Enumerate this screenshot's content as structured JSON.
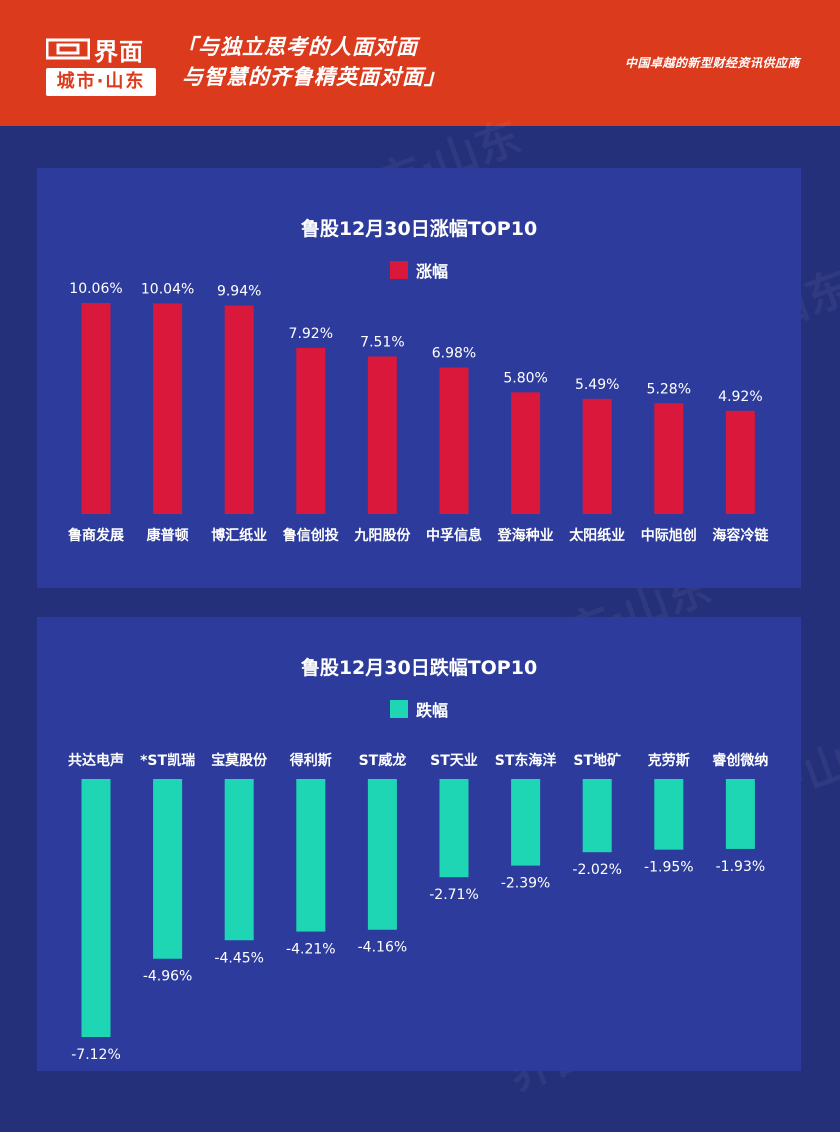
{
  "header": {
    "logo_text": "界面",
    "logo_sub": "城市·山东",
    "slogan_line1": "「与独立思考的人面对面",
    "slogan_line2": "与智慧的齐鲁精英面对面」",
    "tagline": "中国卓越的新型财经资讯供应商",
    "brand_color": "#dc3a1c"
  },
  "watermark_text": "界面 城市·山东",
  "chart_data": [
    {
      "type": "bar",
      "title": "鲁股12月30日涨幅TOP10",
      "categories": [
        "鲁商发展",
        "康普顿",
        "博汇纸业",
        "鲁信创投",
        "九阳股份",
        "中孚信息",
        "登海种业",
        "太阳纸业",
        "中际旭创",
        "海容冷链"
      ],
      "series": [
        {
          "name": "涨幅",
          "values": [
            10.06,
            10.04,
            9.94,
            7.92,
            7.51,
            6.98,
            5.8,
            5.49,
            5.28,
            4.92
          ],
          "labels": [
            "10.06%",
            "10.04%",
            "9.94%",
            "7.92%",
            "7.51%",
            "6.98%",
            "5.80%",
            "5.49%",
            "5.28%",
            "4.92%"
          ],
          "color": "#d9183b"
        }
      ],
      "ylim": [
        0,
        10.06
      ],
      "grid": false,
      "legend_position": "top-center"
    },
    {
      "type": "bar",
      "title": "鲁股12月30日跌幅TOP10",
      "categories": [
        "共达电声",
        "*ST凯瑞",
        "宝莫股份",
        "得利斯",
        "ST威龙",
        "ST天业",
        "ST东海洋",
        "ST地矿",
        "克劳斯",
        "睿创微纳"
      ],
      "series": [
        {
          "name": "跌幅",
          "values": [
            -7.12,
            -4.96,
            -4.45,
            -4.21,
            -4.16,
            -2.71,
            -2.39,
            -2.02,
            -1.95,
            -1.93
          ],
          "labels": [
            "-7.12%",
            "-4.96%",
            "-4.45%",
            "-4.21%",
            "-4.16%",
            "-2.71%",
            "-2.39%",
            "-2.02%",
            "-1.95%",
            "-1.93%"
          ],
          "color": "#1ed6b4"
        }
      ],
      "ylim": [
        -7.12,
        0
      ],
      "grid": false,
      "legend_position": "top-center"
    }
  ]
}
